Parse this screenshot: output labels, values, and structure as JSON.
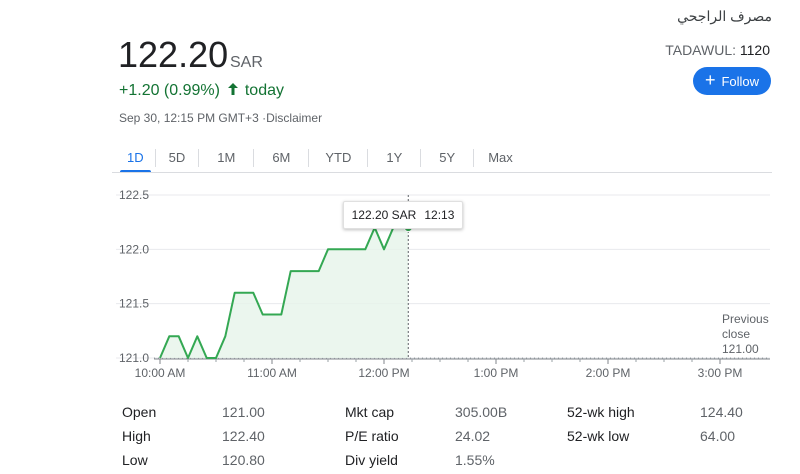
{
  "company_name": "مصرف الراجحي",
  "price": "122.20",
  "currency": "SAR",
  "ticker_exchange": "TADAWUL:",
  "ticker_symbol": "1120",
  "change": "+1.20 (0.99%)",
  "change_suffix": "today",
  "as_of": "Sep 30, 12:15 PM GMT+3 ·",
  "disclaimer": "Disclaimer",
  "follow_label": "Follow",
  "tabs": [
    "1D",
    "5D",
    "1M",
    "6M",
    "YTD",
    "1Y",
    "5Y",
    "Max"
  ],
  "active_tab": "1D",
  "tooltip": {
    "price": "122.20 SAR",
    "time": "12:13"
  },
  "previous_close": {
    "label_line1": "Previous",
    "label_line2": "close",
    "value": "121.00"
  },
  "colors": {
    "line": "#34a853",
    "fill": "#e6f4ea",
    "accent": "#1a73e8",
    "positive": "#137333"
  },
  "chart_data": {
    "type": "line",
    "x_unit": "time of day",
    "y_ticks": [
      "122.5",
      "122.0",
      "121.5",
      "121.0"
    ],
    "x_ticks": [
      "10:00 AM",
      "11:00 AM",
      "12:00 PM",
      "1:00 PM",
      "2:00 PM",
      "3:00 PM"
    ],
    "ylim": [
      121.0,
      122.5
    ],
    "xlim": [
      "10:00",
      "15:05"
    ],
    "reference_line": 121.0,
    "series": [
      {
        "points": [
          [
            "10:00",
            121.0
          ],
          [
            "10:05",
            121.2
          ],
          [
            "10:10",
            121.2
          ],
          [
            "10:15",
            121.0
          ],
          [
            "10:20",
            121.2
          ],
          [
            "10:25",
            121.0
          ],
          [
            "10:30",
            121.0
          ],
          [
            "10:35",
            121.2
          ],
          [
            "10:40",
            121.6
          ],
          [
            "10:50",
            121.6
          ],
          [
            "10:55",
            121.4
          ],
          [
            "11:05",
            121.4
          ],
          [
            "11:10",
            121.8
          ],
          [
            "11:25",
            121.8
          ],
          [
            "11:30",
            122.0
          ],
          [
            "11:50",
            122.0
          ],
          [
            "11:55",
            122.2
          ],
          [
            "12:00",
            122.0
          ],
          [
            "12:05",
            122.2
          ],
          [
            "12:13",
            122.2
          ]
        ]
      }
    ]
  },
  "stats": [
    [
      {
        "label": "Open",
        "value": "121.00"
      },
      {
        "label": "Mkt cap",
        "value": "305.00B"
      },
      {
        "label": "52-wk high",
        "value": "124.40"
      }
    ],
    [
      {
        "label": "High",
        "value": "122.40"
      },
      {
        "label": "P/E ratio",
        "value": "24.02"
      },
      {
        "label": "52-wk low",
        "value": "64.00"
      }
    ],
    [
      {
        "label": "Low",
        "value": "120.80"
      },
      {
        "label": "Div yield",
        "value": "1.55%"
      },
      {
        "label": "",
        "value": ""
      }
    ]
  ]
}
